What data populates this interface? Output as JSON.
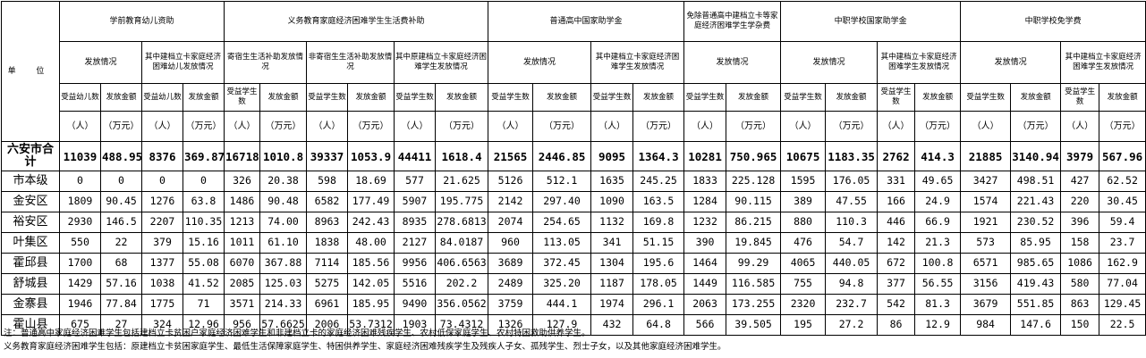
{
  "header": {
    "unit_label": "单 位",
    "groups": [
      "学前教育幼儿资助",
      "义务教育家庭经济困难学生生活费补助",
      "普通高中国家助学金",
      "免除普通高中建档立卡等家庭经济困难学生学杂费",
      "中职学校国家助学金",
      "中职学校免学费"
    ],
    "subgroups": [
      "发放情况",
      "其中建档立卡家庭经济困难幼儿发放情况",
      "寄宿生生活补助发放情况",
      "非寄宿生生活补助发放情况",
      "其中原建档立卡家庭经济困难学生发放情况",
      "发放情况",
      "其中建档立卡家庭经济困难学生发放情况",
      "发放情况",
      "发放情况",
      "其中建档立卡家庭经济困难学生发放情况",
      "发放情况",
      "其中建档立卡家庭经济困难学生发放情况"
    ],
    "cols": [
      "受益幼儿数",
      "发放金额",
      "受益幼儿数",
      "发放金额",
      "受益学生数",
      "发放金额",
      "受益学生数",
      "发放金额",
      "受益学生数",
      "发放金额",
      "受益学生数",
      "发放金额",
      "受益学生数",
      "发放金额",
      "受益学生数",
      "发放金额",
      "受益学生数",
      "发放金额",
      "受益学生数",
      "发放金额",
      "受益学生数",
      "发放金额",
      "受益学生数",
      "发放金额"
    ],
    "unit_person": "（人）",
    "unit_money": "（万元）"
  },
  "total": {
    "name": "六安市合计",
    "values": [
      "11039",
      "488.95",
      "8376",
      "369.87",
      "16718",
      "1010.8",
      "39337",
      "1053.9",
      "44411",
      "1618.4",
      "21565",
      "2446.85",
      "9095",
      "1364.3",
      "10281",
      "750.965",
      "10675",
      "1183.35",
      "2762",
      "414.3",
      "21885",
      "3140.94",
      "3979",
      "567.96"
    ]
  },
  "rows": [
    {
      "name": "市本级",
      "values": [
        "0",
        "0",
        "0",
        "0",
        "326",
        "20.38",
        "598",
        "18.69",
        "577",
        "21.625",
        "5126",
        "512.1",
        "1635",
        "245.25",
        "1833",
        "225.128",
        "1595",
        "176.05",
        "331",
        "49.65",
        "3427",
        "498.51",
        "427",
        "62.52"
      ]
    },
    {
      "name": "金安区",
      "values": [
        "1809",
        "90.45",
        "1276",
        "63.8",
        "1486",
        "90.48",
        "6582",
        "177.49",
        "5907",
        "195.775",
        "2142",
        "297.40",
        "1090",
        "163.5",
        "1284",
        "90.115",
        "389",
        "47.55",
        "166",
        "24.9",
        "1574",
        "221.43",
        "220",
        "30.45"
      ]
    },
    {
      "name": "裕安区",
      "values": [
        "2930",
        "146.5",
        "2207",
        "110.35",
        "1213",
        "74.00",
        "8963",
        "242.43",
        "8935",
        "278.6813",
        "2074",
        "254.65",
        "1132",
        "169.8",
        "1232",
        "86.215",
        "880",
        "110.3",
        "446",
        "66.9",
        "1921",
        "230.52",
        "396",
        "59.4"
      ]
    },
    {
      "name": "叶集区",
      "values": [
        "550",
        "22",
        "379",
        "15.16",
        "1011",
        "61.10",
        "1838",
        "48.00",
        "2127",
        "84.0187",
        "960",
        "113.05",
        "341",
        "51.15",
        "390",
        "19.845",
        "476",
        "54.7",
        "142",
        "21.3",
        "573",
        "85.95",
        "158",
        "23.7"
      ]
    },
    {
      "name": "霍邱县",
      "values": [
        "1700",
        "68",
        "1377",
        "55.08",
        "6070",
        "367.88",
        "7114",
        "185.56",
        "9956",
        "406.6563",
        "3689",
        "372.45",
        "1304",
        "195.6",
        "1464",
        "99.29",
        "4065",
        "440.05",
        "672",
        "100.8",
        "6571",
        "985.65",
        "1086",
        "162.9"
      ]
    },
    {
      "name": "舒城县",
      "values": [
        "1429",
        "57.16",
        "1038",
        "41.52",
        "2085",
        "125.03",
        "5275",
        "142.05",
        "5516",
        "202.2",
        "2489",
        "325.20",
        "1187",
        "178.05",
        "1449",
        "116.585",
        "755",
        "94.8",
        "377",
        "56.55",
        "3156",
        "419.43",
        "580",
        "77.04"
      ]
    },
    {
      "name": "金寨县",
      "values": [
        "1946",
        "77.84",
        "1775",
        "71",
        "3571",
        "214.33",
        "6961",
        "185.95",
        "9490",
        "356.0562",
        "3759",
        "444.1",
        "1974",
        "296.1",
        "2063",
        "173.255",
        "2320",
        "232.7",
        "542",
        "81.3",
        "3679",
        "551.85",
        "863",
        "129.45"
      ]
    },
    {
      "name": "霍山县",
      "values": [
        "675",
        "27",
        "324",
        "12.96",
        "956",
        "57.6625",
        "2006",
        "53.7312",
        "1903",
        "73.4312",
        "1326",
        "127.9",
        "432",
        "64.8",
        "566",
        "39.505",
        "195",
        "27.2",
        "86",
        "12.9",
        "984",
        "147.6",
        "150",
        "22.5"
      ]
    }
  ],
  "notes": [
    "注：普通高中家庭经济困难学生包括建档立卡贫困户家庭经济困难学生和非建档立卡的家庭经济困难残疾学生、农村低保家庭学生、农村特困救助供养学生。",
    "    义务教育家庭经济困难学生包括：原建档立卡贫困家庭学生、最低生活保障家庭学生、特困供养学生、家庭经济困难残疾学生及残疾人子女、孤残学生、烈士子女，以及其他家庭经济困难学生。"
  ]
}
